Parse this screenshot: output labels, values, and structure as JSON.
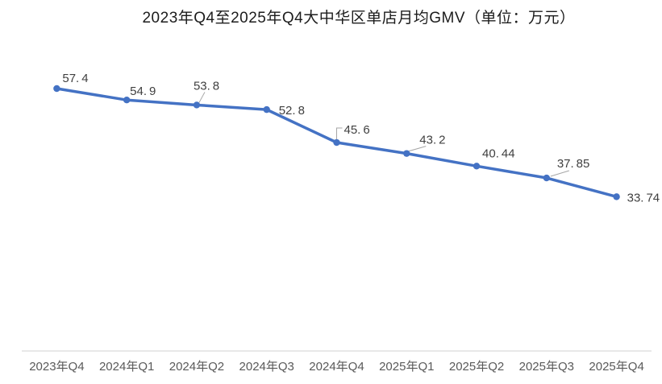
{
  "chart_data": {
    "type": "line",
    "title": "2023年Q4至2025年Q4大中华区单店月均GMV（单位：万元）",
    "unit": "万元",
    "categories": [
      "2023年Q4",
      "2024年Q1",
      "2024年Q2",
      "2024年Q3",
      "2024年Q4",
      "2025年Q1",
      "2025年Q2",
      "2025年Q3",
      "2025年Q4"
    ],
    "values": [
      57.4,
      54.9,
      53.8,
      52.8,
      45.6,
      43.2,
      40.44,
      37.85,
      33.74
    ],
    "data_labels": [
      "57.4",
      "54.9",
      "53.8",
      "52.8",
      "45.6",
      "43.2",
      "40.44",
      "37.85",
      "33.74"
    ],
    "ylim": [
      0,
      66
    ],
    "grid": false,
    "legend": "none",
    "colors": {
      "line": "#4472C4",
      "marker": "#4472C4",
      "data_label": "#404040",
      "axis_label": "#595959",
      "axis_line": "#d9d9d9",
      "leader_line": "#a6a6a6",
      "background": "#ffffff"
    }
  }
}
